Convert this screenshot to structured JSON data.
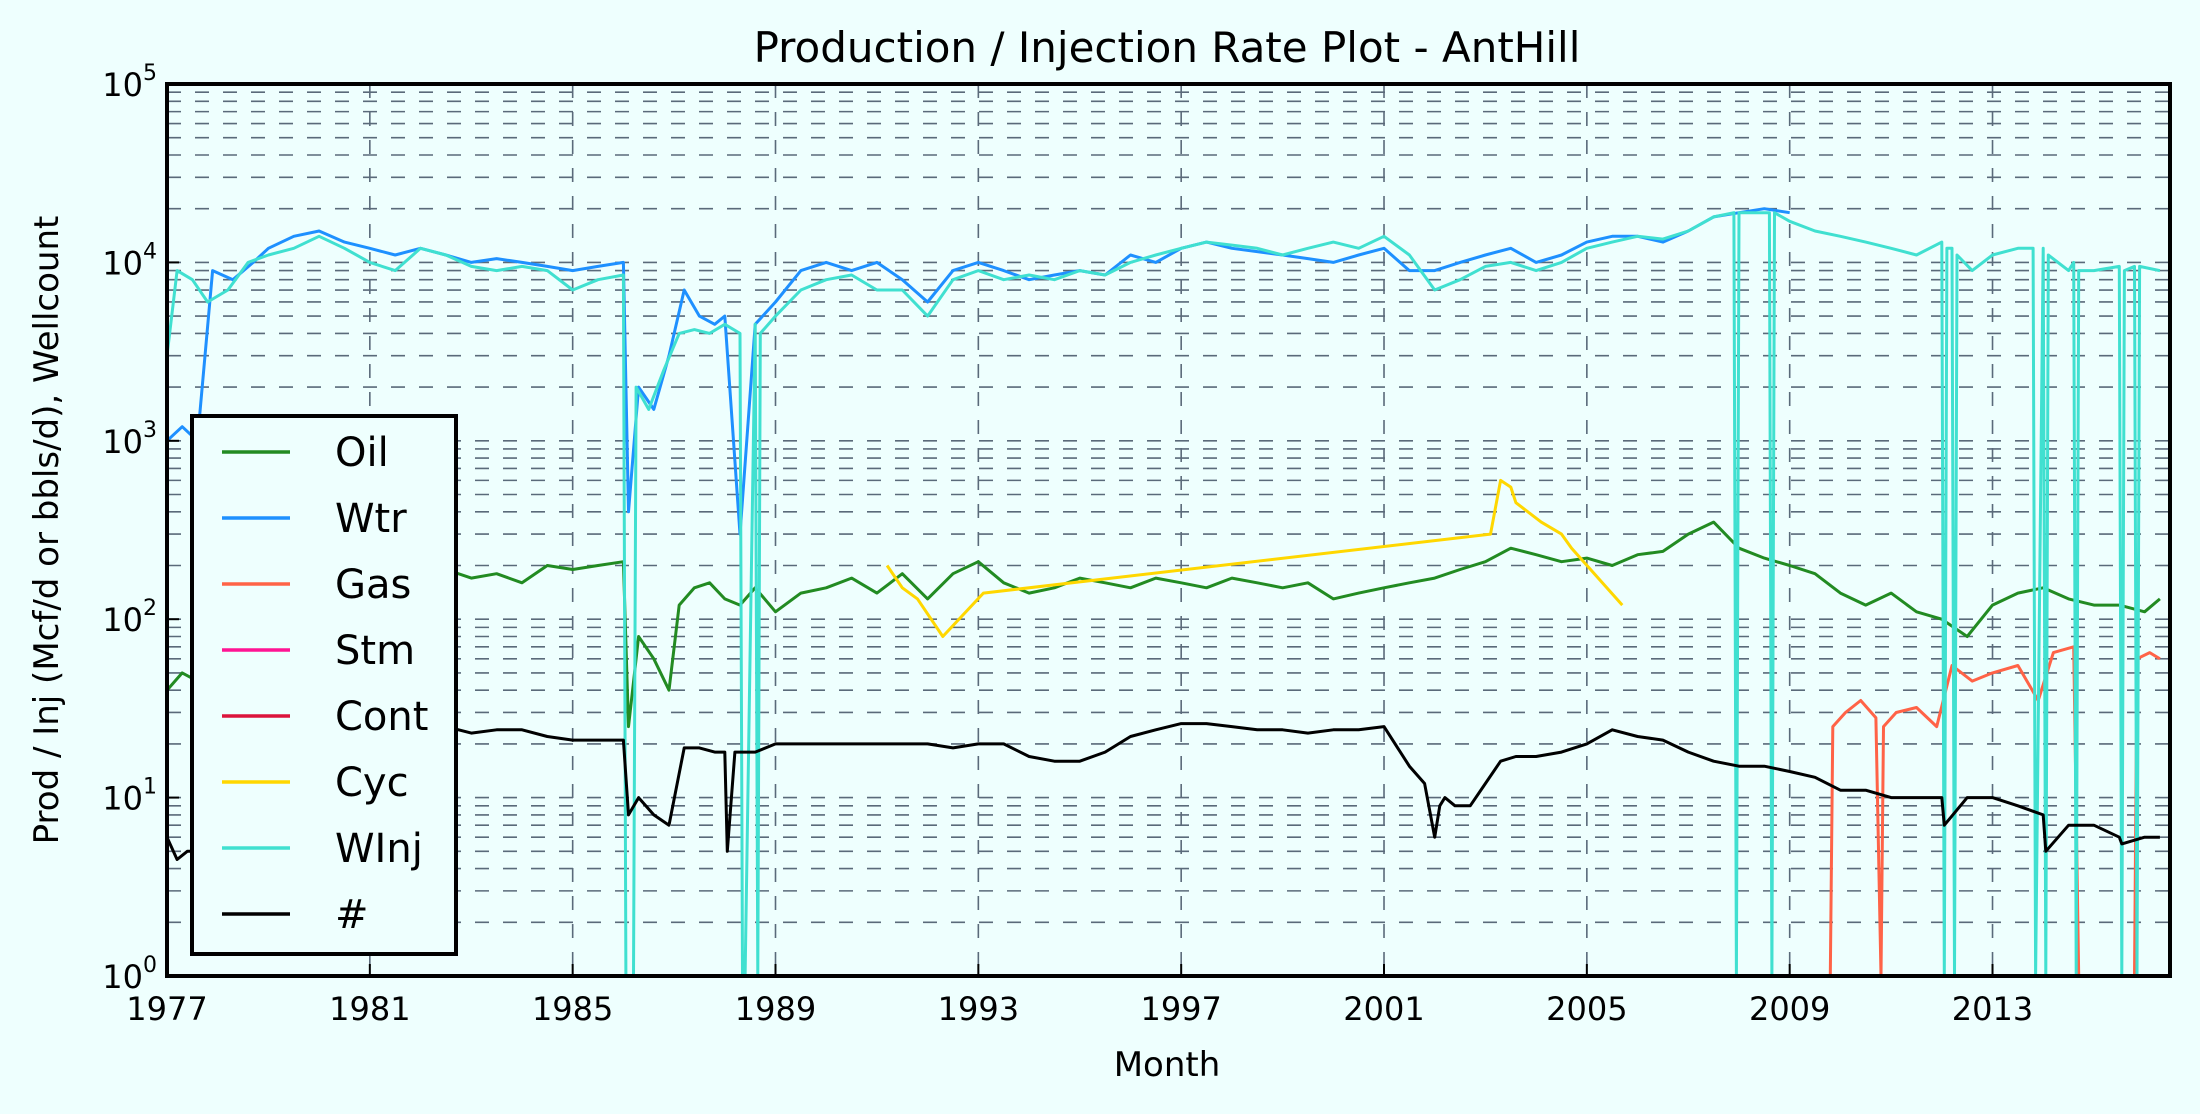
{
  "chart_data": {
    "type": "line",
    "title": "Production / Injection Rate Plot - AntHill",
    "xlabel": "Month",
    "ylabel": "Prod / Inj (Mcf/d or bbls/d), Wellcount",
    "yscale": "log",
    "ylim": [
      1,
      100000
    ],
    "xlim": [
      1977.0,
      2016.5
    ],
    "xticks": [
      "1977",
      "1981",
      "1985",
      "1989",
      "1993",
      "1997",
      "2001",
      "2005",
      "2009",
      "2013"
    ],
    "yticks": [
      {
        "base": "10",
        "exp": "0"
      },
      {
        "base": "10",
        "exp": "1"
      },
      {
        "base": "10",
        "exp": "2"
      },
      {
        "base": "10",
        "exp": "3"
      },
      {
        "base": "10",
        "exp": "4"
      },
      {
        "base": "10",
        "exp": "5"
      }
    ],
    "grid": true,
    "legend_position": "lower-left",
    "series": [
      {
        "name": "Oil",
        "color": "#228b22",
        "x": [
          1977.0,
          1977.3,
          1977.6,
          1978.0,
          1978.5,
          1979.0,
          1979.5,
          1980.0,
          1980.5,
          1981.0,
          1981.5,
          1982.0,
          1982.5,
          1983.0,
          1983.5,
          1984.0,
          1984.5,
          1985.0,
          1985.5,
          1986.0,
          1986.1,
          1986.3,
          1986.6,
          1986.9,
          1987.1,
          1987.4,
          1987.7,
          1988.0,
          1988.3,
          1988.6,
          1989.0,
          1989.5,
          1990.0,
          1990.5,
          1991.0,
          1991.5,
          1992.0,
          1992.5,
          1993.0,
          1993.5,
          1994.0,
          1994.5,
          1995.0,
          1995.5,
          1996.0,
          1996.5,
          1997.0,
          1997.5,
          1998.0,
          1998.5,
          1999.0,
          1999.5,
          2000.0,
          2000.5,
          2001.0,
          2001.5,
          2002.0,
          2002.5,
          2003.0,
          2003.5,
          2004.0,
          2004.5,
          2005.0,
          2005.5,
          2006.0,
          2006.5,
          2007.0,
          2007.5,
          2008.0,
          2008.5,
          2009.0,
          2009.5,
          2010.0,
          2010.5,
          2011.0,
          2011.5,
          2012.0,
          2012.5,
          2013.0,
          2013.5,
          2014.0,
          2014.5,
          2015.0,
          2015.5,
          2016.0,
          2016.3
        ],
        "values": [
          40,
          50,
          45,
          120,
          160,
          180,
          190,
          170,
          160,
          150,
          140,
          160,
          190,
          170,
          180,
          160,
          200,
          190,
          200,
          210,
          25,
          80,
          60,
          40,
          120,
          150,
          160,
          130,
          120,
          150,
          110,
          140,
          150,
          170,
          140,
          180,
          130,
          180,
          210,
          160,
          140,
          150,
          170,
          160,
          150,
          170,
          160,
          150,
          170,
          160,
          150,
          160,
          130,
          140,
          150,
          160,
          170,
          190,
          210,
          250,
          230,
          210,
          220,
          200,
          230,
          240,
          300,
          350,
          250,
          220,
          200,
          180,
          140,
          120,
          140,
          110,
          100,
          80,
          120,
          140,
          150,
          130,
          120,
          120,
          110,
          130
        ]
      },
      {
        "name": "Wtr",
        "color": "#1e90ff",
        "x": [
          1977.0,
          1977.3,
          1977.6,
          1977.9,
          1978.3,
          1978.7,
          1979.0,
          1979.5,
          1980.0,
          1980.5,
          1981.0,
          1981.5,
          1982.0,
          1982.5,
          1983.0,
          1983.5,
          1984.0,
          1984.5,
          1985.0,
          1985.5,
          1986.0,
          1986.1,
          1986.3,
          1986.6,
          1986.9,
          1987.2,
          1987.5,
          1987.8,
          1988.0,
          1988.3,
          1988.6,
          1989.0,
          1989.5,
          1990.0,
          1990.5,
          1991.0,
          1991.5,
          1992.0,
          1992.5,
          1993.0,
          1993.5,
          1994.0,
          1994.5,
          1995.0,
          1995.5,
          1996.0,
          1996.5,
          1997.0,
          1997.5,
          1998.0,
          1998.5,
          1999.0,
          1999.5,
          2000.0,
          2000.5,
          2001.0,
          2001.5,
          2002.0,
          2002.5,
          2003.0,
          2003.5,
          2004.0,
          2004.5,
          2005.0,
          2005.5,
          2006.0,
          2006.5,
          2007.0,
          2007.5,
          2008.0,
          2008.5,
          2009.0
        ],
        "values": [
          1000,
          1200,
          1000,
          9000,
          8000,
          10000,
          12000,
          14000,
          15000,
          13000,
          12000,
          11000,
          12000,
          11000,
          10000,
          10500,
          10000,
          9500,
          9000,
          9500,
          10000,
          400,
          2000,
          1500,
          3000,
          7000,
          5000,
          4500,
          5000,
          300,
          4500,
          6000,
          9000,
          10000,
          9000,
          10000,
          8000,
          6000,
          9000,
          10000,
          9000,
          8000,
          8500,
          9000,
          8500,
          11000,
          10000,
          12000,
          13000,
          12000,
          11500,
          11000,
          10500,
          10000,
          11000,
          12000,
          9000,
          9000,
          10000,
          11000,
          12000,
          10000,
          11000,
          13000,
          14000,
          14000,
          13000,
          15000,
          18000,
          19000,
          20000,
          19000
        ]
      },
      {
        "name": "Gas",
        "color": "#ff6347",
        "x": [
          2009.8,
          2009.85,
          2010.1,
          2010.4,
          2010.7,
          2010.8,
          2010.85,
          2011.1,
          2011.5,
          2011.9,
          2012.2,
          2012.6,
          2013.0,
          2013.5,
          2013.9,
          2014.2,
          2014.6,
          2014.7,
          2015.8,
          2015.85,
          2016.1,
          2016.3
        ],
        "values": [
          1,
          25,
          30,
          35,
          28,
          1,
          25,
          30,
          32,
          25,
          55,
          45,
          50,
          55,
          35,
          65,
          70,
          1,
          1,
          60,
          65,
          60
        ]
      },
      {
        "name": "Stm",
        "color": "#ff1493",
        "x": [],
        "values": []
      },
      {
        "name": "Cont",
        "color": "#dc143c",
        "x": [],
        "values": []
      },
      {
        "name": "Cyc",
        "color": "#ffd700",
        "x": [
          1991.2,
          1991.5,
          1991.8,
          1992.3,
          1993.1,
          2003.1,
          2003.3,
          2003.5,
          2003.6,
          2004.1,
          2004.5,
          2004.7,
          2005.7
        ],
        "values": [
          200,
          150,
          130,
          80,
          140,
          300,
          600,
          550,
          450,
          350,
          300,
          250,
          120
        ]
      },
      {
        "name": "WInj",
        "color": "#40e0d0",
        "x": [
          1977.0,
          1977.2,
          1977.5,
          1977.8,
          1978.2,
          1978.6,
          1979.0,
          1979.5,
          1980.0,
          1980.5,
          1981.0,
          1981.5,
          1982.0,
          1982.5,
          1983.0,
          1983.5,
          1984.0,
          1984.5,
          1985.0,
          1985.5,
          1986.0,
          1986.05,
          1986.2,
          1986.25,
          1986.5,
          1986.8,
          1987.1,
          1987.4,
          1987.7,
          1988.0,
          1988.3,
          1988.35,
          1988.4,
          1988.6,
          1988.65,
          1988.7,
          1989.0,
          1989.5,
          1990.0,
          1990.5,
          1991.0,
          1991.5,
          1992.0,
          1992.5,
          1993.0,
          1993.5,
          1994.0,
          1994.5,
          1995.0,
          1995.5,
          1996.0,
          1996.5,
          1997.0,
          1997.5,
          1998.0,
          1998.5,
          1999.0,
          1999.5,
          2000.0,
          2000.5,
          2001.0,
          2001.5,
          2002.0,
          2002.5,
          2003.0,
          2003.5,
          2004.0,
          2004.5,
          2005.0,
          2005.5,
          2006.0,
          2006.5,
          2007.0,
          2007.5,
          2007.9,
          2007.95,
          2008.0,
          2008.6,
          2008.65,
          2008.7,
          2009.0,
          2009.5,
          2010.0,
          2010.5,
          2011.0,
          2011.5,
          2012.0,
          2012.05,
          2012.1,
          2012.2,
          2012.25,
          2012.3,
          2012.6,
          2013.0,
          2013.5,
          2013.8,
          2013.85,
          2014.0,
          2014.05,
          2014.1,
          2014.5,
          2014.6,
          2014.65,
          2014.7,
          2015.0,
          2015.5,
          2015.55,
          2015.6,
          2015.8,
          2015.85,
          2015.9,
          2016.3
        ],
        "values": [
          3000,
          9000,
          8000,
          6000,
          7000,
          10000,
          11000,
          12000,
          14000,
          12000,
          10000,
          9000,
          12000,
          11000,
          9500,
          9000,
          9500,
          9000,
          7000,
          8000,
          8500,
          1,
          1,
          2000,
          1500,
          2500,
          4000,
          4200,
          4000,
          4500,
          4000,
          1,
          1,
          4500,
          1,
          4000,
          5000,
          7000,
          8000,
          8500,
          7000,
          7000,
          5000,
          8000,
          9000,
          8000,
          8500,
          8000,
          9000,
          8500,
          10000,
          11000,
          12000,
          13000,
          12500,
          12000,
          11000,
          12000,
          13000,
          12000,
          14000,
          11000,
          7000,
          8000,
          9500,
          10000,
          9000,
          10000,
          12000,
          13000,
          14000,
          13500,
          15000,
          18000,
          19000,
          1,
          19000,
          19000,
          1,
          19000,
          17000,
          15000,
          14000,
          13000,
          12000,
          11000,
          13000,
          1,
          12000,
          12000,
          1,
          11000,
          9000,
          11000,
          12000,
          12000,
          1,
          12000,
          1,
          11000,
          9000,
          10000,
          1,
          9000,
          9000,
          9500,
          1,
          9000,
          9500,
          1,
          9500,
          9000
        ]
      },
      {
        "name": "#",
        "color": "#000000",
        "x": [
          1977.0,
          1977.2,
          1977.4,
          1977.6,
          1978.0,
          1978.5,
          1979.0,
          1979.5,
          1980.0,
          1980.5,
          1981.0,
          1981.5,
          1982.0,
          1982.5,
          1983.0,
          1983.5,
          1984.0,
          1984.5,
          1985.0,
          1985.5,
          1986.0,
          1986.1,
          1986.3,
          1986.6,
          1986.9,
          1987.2,
          1987.5,
          1987.8,
          1988.0,
          1988.05,
          1988.2,
          1988.6,
          1989.0,
          1989.5,
          1990.0,
          1990.5,
          1991.0,
          1991.5,
          1992.0,
          1992.5,
          1993.0,
          1993.5,
          1994.0,
          1994.5,
          1995.0,
          1995.5,
          1996.0,
          1996.5,
          1997.0,
          1997.5,
          1998.0,
          1998.5,
          1999.0,
          1999.5,
          2000.0,
          2000.5,
          2001.0,
          2001.5,
          2001.8,
          2002.0,
          2002.1,
          2002.2,
          2002.4,
          2002.7,
          2003.0,
          2003.3,
          2003.6,
          2004.0,
          2004.5,
          2005.0,
          2005.5,
          2006.0,
          2006.5,
          2007.0,
          2007.5,
          2008.0,
          2008.5,
          2009.0,
          2009.5,
          2010.0,
          2010.5,
          2011.0,
          2011.5,
          2012.0,
          2012.05,
          2012.5,
          2013.0,
          2013.5,
          2014.0,
          2014.05,
          2014.5,
          2015.0,
          2015.5,
          2015.55,
          2016.0,
          2016.3
        ],
        "values": [
          6,
          4.5,
          5,
          5,
          20,
          22,
          24,
          25,
          23,
          22,
          21,
          22,
          26,
          25,
          23,
          24,
          24,
          22,
          21,
          21,
          21,
          8,
          10,
          8,
          7,
          19,
          19,
          18,
          18,
          5,
          18,
          18,
          20,
          20,
          20,
          20,
          20,
          20,
          20,
          19,
          20,
          20,
          17,
          16,
          16,
          18,
          22,
          24,
          26,
          26,
          25,
          24,
          24,
          23,
          24,
          24,
          25,
          15,
          12,
          6,
          9,
          10,
          9,
          9,
          12,
          16,
          17,
          17,
          18,
          20,
          24,
          22,
          21,
          18,
          16,
          15,
          15,
          14,
          13,
          11,
          11,
          10,
          10,
          10,
          7,
          10,
          10,
          9,
          8,
          5,
          7,
          7,
          6,
          5.5,
          6,
          6
        ]
      }
    ]
  }
}
